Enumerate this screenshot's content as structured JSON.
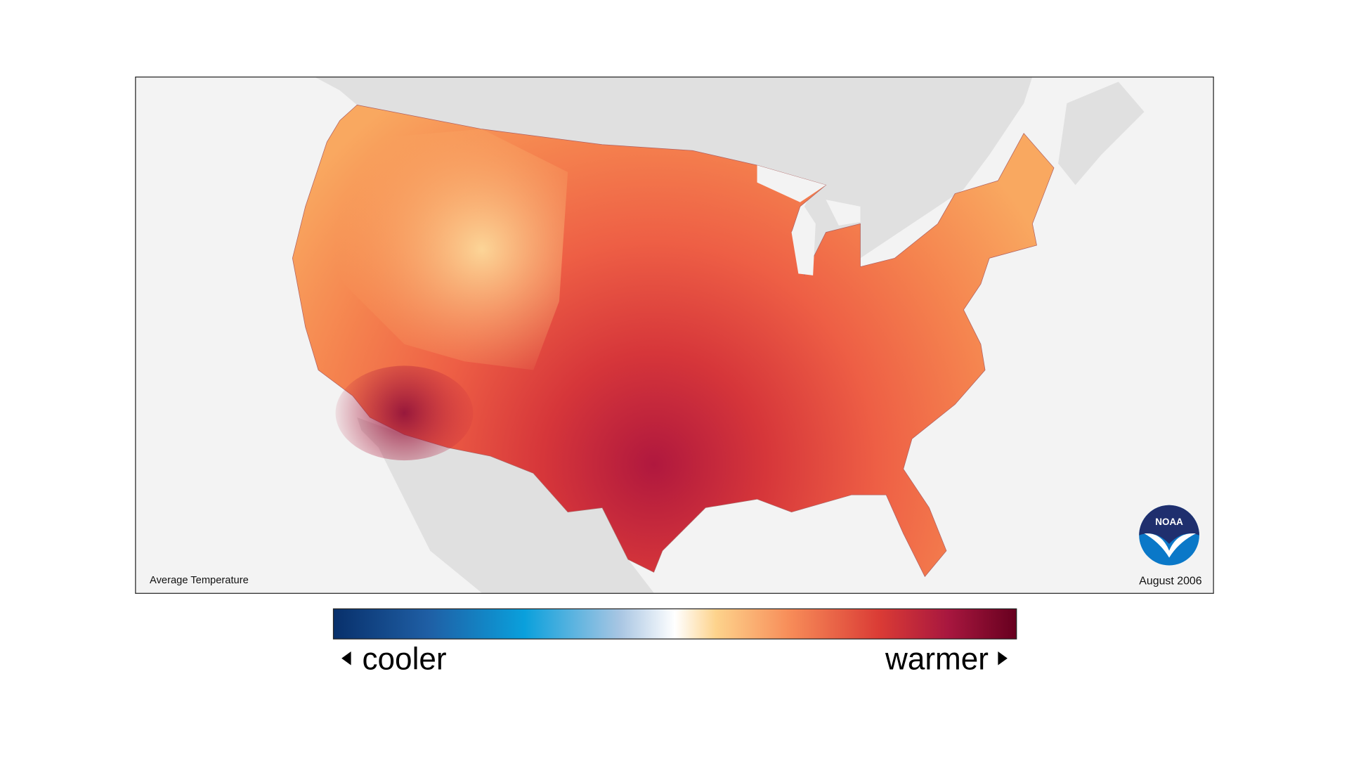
{
  "map": {
    "label": "Average Temperature",
    "date": "August 2006"
  },
  "legend": {
    "low_label": "cooler",
    "high_label": "warmer"
  },
  "logo": {
    "text": "NOAA"
  }
}
